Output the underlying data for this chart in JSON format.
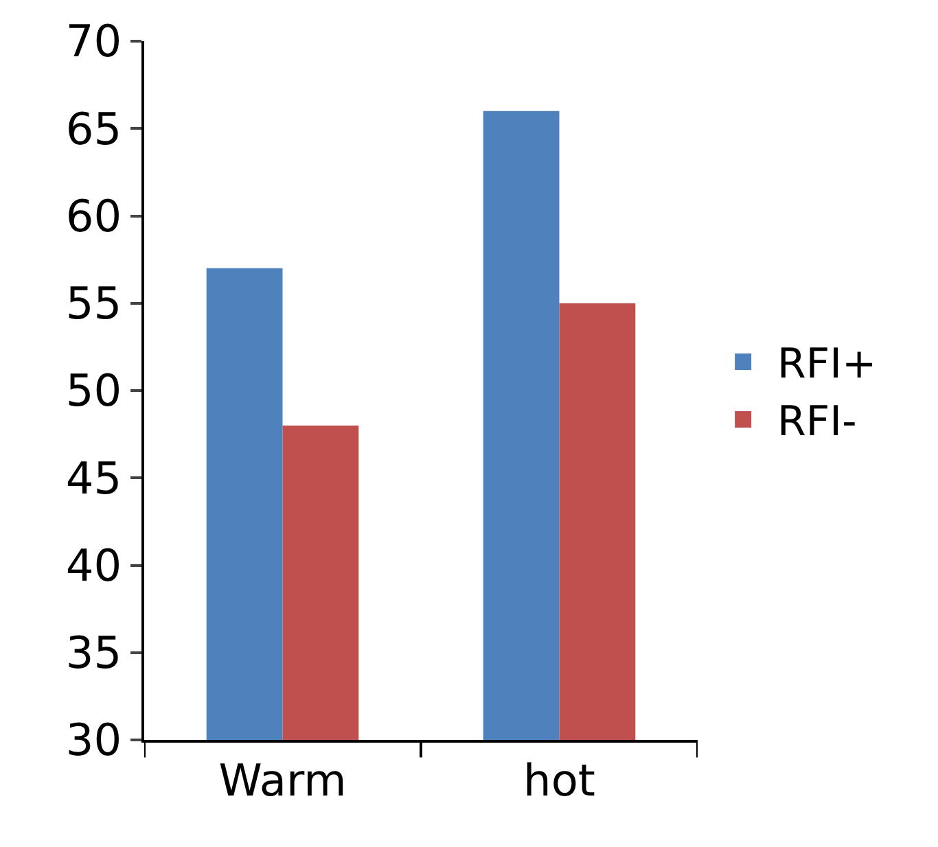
{
  "chart_data": {
    "type": "bar",
    "categories": [
      "Warm",
      "hot"
    ],
    "series": [
      {
        "name": "RFI+",
        "color": "#4f81bd",
        "values": [
          57,
          66
        ]
      },
      {
        "name": "RFI-",
        "color": "#c0504d",
        "values": [
          48,
          55
        ]
      }
    ],
    "ylim": [
      30,
      70
    ],
    "yticks": [
      30,
      35,
      40,
      45,
      50,
      55,
      60,
      65,
      70
    ],
    "legend": "right"
  }
}
